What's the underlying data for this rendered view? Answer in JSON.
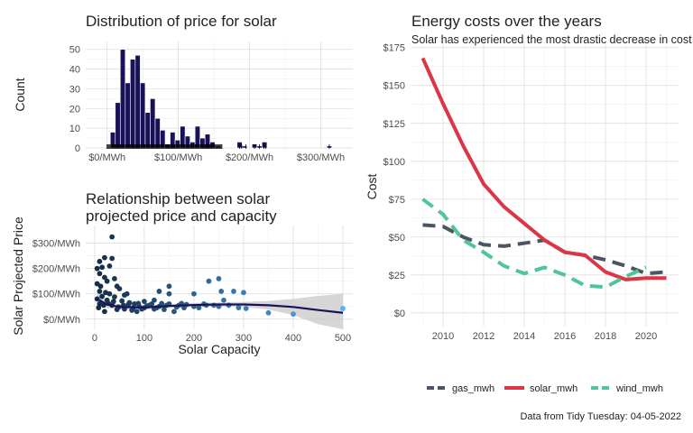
{
  "chart_data": [
    {
      "type": "bar",
      "title": "Distribution of price for solar",
      "xlabel": "",
      "ylabel": "Count",
      "xlim": [
        -30,
        345
      ],
      "ylim": [
        0,
        54
      ],
      "x_ticks": [
        {
          "value": 0,
          "label": "$0/MWh"
        },
        {
          "value": 100,
          "label": "$100/MWh"
        },
        {
          "value": 200,
          "label": "$200/MWh"
        },
        {
          "value": 300,
          "label": "$300/MWh"
        }
      ],
      "y_ticks": [
        0,
        10,
        20,
        30,
        40,
        50
      ],
      "bin_width": 7,
      "bins": [
        {
          "x": 8,
          "count": 8
        },
        {
          "x": 15,
          "count": 23
        },
        {
          "x": 22,
          "count": 50
        },
        {
          "x": 29,
          "count": 33
        },
        {
          "x": 36,
          "count": 45
        },
        {
          "x": 43,
          "count": 47
        },
        {
          "x": 50,
          "count": 33
        },
        {
          "x": 57,
          "count": 18
        },
        {
          "x": 64,
          "count": 25
        },
        {
          "x": 71,
          "count": 15
        },
        {
          "x": 78,
          "count": 9
        },
        {
          "x": 85,
          "count": 2
        },
        {
          "x": 92,
          "count": 8
        },
        {
          "x": 99,
          "count": 4
        },
        {
          "x": 106,
          "count": 11
        },
        {
          "x": 113,
          "count": 6
        },
        {
          "x": 120,
          "count": 3
        },
        {
          "x": 127,
          "count": 11
        },
        {
          "x": 134,
          "count": 5
        },
        {
          "x": 141,
          "count": 7
        },
        {
          "x": 148,
          "count": 3
        },
        {
          "x": 155,
          "count": 1
        },
        {
          "x": 186,
          "count": 3
        },
        {
          "x": 193,
          "count": 1
        },
        {
          "x": 207,
          "count": 2
        },
        {
          "x": 214,
          "count": 1
        },
        {
          "x": 221,
          "count": 3
        },
        {
          "x": 312,
          "count": 1
        }
      ],
      "rug_range": [
        0,
        162
      ]
    },
    {
      "type": "scatter",
      "title": "Relationship between solar projected price and capacity",
      "title_lines": [
        "Relationship between solar",
        "projected price and capacity"
      ],
      "xlabel": "Solar Capacity",
      "ylabel": "Solar Projected Price",
      "xlim": [
        -18,
        520
      ],
      "ylim": [
        -40,
        370
      ],
      "x_ticks": [
        0,
        100,
        200,
        300,
        400,
        500
      ],
      "y_ticks": [
        {
          "value": 0,
          "label": "$0/MWh"
        },
        {
          "value": 100,
          "label": "$100/MWh"
        },
        {
          "value": 200,
          "label": "$200/MWh"
        },
        {
          "value": 300,
          "label": "$300/MWh"
        }
      ],
      "colors": {
        "low": "#132b43",
        "high": "#56b1f7",
        "smooth": "#1a1259",
        "band": "#c8c8c8"
      },
      "points": [
        [
          35,
          325
        ],
        [
          20,
          243
        ],
        [
          35,
          240
        ],
        [
          10,
          228
        ],
        [
          5,
          200
        ],
        [
          15,
          205
        ],
        [
          30,
          210
        ],
        [
          10,
          180
        ],
        [
          20,
          165
        ],
        [
          40,
          160
        ],
        [
          25,
          150
        ],
        [
          5,
          140
        ],
        [
          12,
          130
        ],
        [
          45,
          130
        ],
        [
          50,
          120
        ],
        [
          10,
          110
        ],
        [
          22,
          105
        ],
        [
          30,
          100
        ],
        [
          60,
          95
        ],
        [
          15,
          90
        ],
        [
          40,
          88
        ],
        [
          5,
          80
        ],
        [
          25,
          75
        ],
        [
          55,
          72
        ],
        [
          70,
          65
        ],
        [
          80,
          60
        ],
        [
          10,
          60
        ],
        [
          35,
          55
        ],
        [
          90,
          50
        ],
        [
          100,
          45
        ],
        [
          110,
          55
        ],
        [
          130,
          50
        ],
        [
          150,
          60
        ],
        [
          170,
          55
        ],
        [
          120,
          40
        ],
        [
          140,
          38
        ],
        [
          160,
          30
        ],
        [
          180,
          45
        ],
        [
          200,
          50
        ],
        [
          220,
          60
        ],
        [
          240,
          55
        ],
        [
          250,
          50
        ],
        [
          100,
          70
        ],
        [
          120,
          75
        ],
        [
          150,
          100
        ],
        [
          200,
          100
        ],
        [
          230,
          150
        ],
        [
          250,
          160
        ],
        [
          280,
          110
        ],
        [
          300,
          105
        ],
        [
          260,
          75
        ],
        [
          290,
          45
        ],
        [
          350,
          25
        ],
        [
          400,
          20
        ],
        [
          500,
          42
        ],
        [
          20,
          30
        ],
        [
          45,
          38
        ],
        [
          60,
          40
        ],
        [
          75,
          35
        ],
        [
          85,
          30
        ],
        [
          95,
          40
        ],
        [
          150,
          130
        ],
        [
          130,
          110
        ],
        [
          65,
          100
        ],
        [
          8,
          45
        ],
        [
          18,
          55
        ],
        [
          28,
          62
        ],
        [
          38,
          70
        ],
        [
          48,
          48
        ],
        [
          58,
          55
        ],
        [
          68,
          58
        ],
        [
          78,
          45
        ],
        [
          88,
          62
        ],
        [
          105,
          52
        ],
        [
          115,
          60
        ],
        [
          125,
          45
        ],
        [
          135,
          62
        ],
        [
          145,
          55
        ],
        [
          165,
          48
        ],
        [
          175,
          62
        ],
        [
          185,
          58
        ],
        [
          210,
          45
        ],
        [
          225,
          55
        ],
        [
          255,
          110
        ],
        [
          270,
          55
        ],
        [
          305,
          42
        ]
      ],
      "smooth": [
        [
          5,
          80
        ],
        [
          25,
          58
        ],
        [
          50,
          48
        ],
        [
          100,
          46
        ],
        [
          150,
          52
        ],
        [
          200,
          56
        ],
        [
          250,
          58
        ],
        [
          300,
          58
        ],
        [
          350,
          55
        ],
        [
          400,
          48
        ],
        [
          450,
          36
        ],
        [
          500,
          25
        ]
      ],
      "band_upper": [
        [
          5,
          105
        ],
        [
          25,
          72
        ],
        [
          50,
          58
        ],
        [
          100,
          55
        ],
        [
          150,
          60
        ],
        [
          200,
          64
        ],
        [
          250,
          66
        ],
        [
          300,
          68
        ],
        [
          350,
          72
        ],
        [
          400,
          80
        ],
        [
          450,
          92
        ],
        [
          500,
          100
        ]
      ],
      "band_lower": [
        [
          5,
          55
        ],
        [
          25,
          44
        ],
        [
          50,
          38
        ],
        [
          100,
          37
        ],
        [
          150,
          44
        ],
        [
          200,
          48
        ],
        [
          250,
          50
        ],
        [
          300,
          48
        ],
        [
          350,
          38
        ],
        [
          400,
          16
        ],
        [
          450,
          -20
        ],
        [
          500,
          -48
        ]
      ]
    },
    {
      "type": "line",
      "title": "Energy costs over the years",
      "subtitle": "Solar has experienced the most drastic decrease in cost",
      "xlabel": "",
      "ylabel": "Cost",
      "xlim": [
        2008.4,
        2021.6
      ],
      "ylim": [
        -9,
        179
      ],
      "x_ticks": [
        2010,
        2012,
        2014,
        2016,
        2018,
        2020
      ],
      "y_ticks": [
        {
          "value": 0,
          "label": "$0"
        },
        {
          "value": 25,
          "label": "$25"
        },
        {
          "value": 50,
          "label": "$50"
        },
        {
          "value": 75,
          "label": "$75"
        },
        {
          "value": 100,
          "label": "$100"
        },
        {
          "value": 125,
          "label": "$125"
        },
        {
          "value": 150,
          "label": "$150"
        },
        {
          "value": 175,
          "label": "$175"
        }
      ],
      "series": [
        {
          "name": "gas_mwh",
          "color": "#4b5563",
          "dash": true,
          "x": [
            2009,
            2010,
            2011,
            2012,
            2013,
            2014,
            2015,
            2016,
            2017,
            2018,
            2019,
            2020,
            2021
          ],
          "values": [
            58,
            57,
            50,
            45,
            44,
            46,
            48,
            40,
            38,
            35,
            31,
            26,
            27
          ]
        },
        {
          "name": "solar_mwh",
          "color": "#dc3545",
          "dash": false,
          "x": [
            2009,
            2010,
            2011,
            2012,
            2013,
            2014,
            2015,
            2016,
            2017,
            2018,
            2019,
            2020,
            2021
          ],
          "values": [
            168,
            138,
            110,
            85,
            70,
            59,
            48,
            40,
            38,
            27,
            22,
            23,
            23
          ]
        },
        {
          "name": "wind_mwh",
          "color": "#4fc59a",
          "dash": true,
          "x": [
            2009,
            2010,
            2011,
            2012,
            2013,
            2014,
            2015,
            2016,
            2017,
            2018,
            2019,
            2020
          ],
          "values": [
            75,
            65,
            48,
            40,
            31,
            26,
            30,
            25,
            18,
            17,
            24,
            30
          ]
        }
      ],
      "legend_position": "bottom"
    }
  ],
  "caption": "Data from Tidy Tuesday: 04-05-2022"
}
